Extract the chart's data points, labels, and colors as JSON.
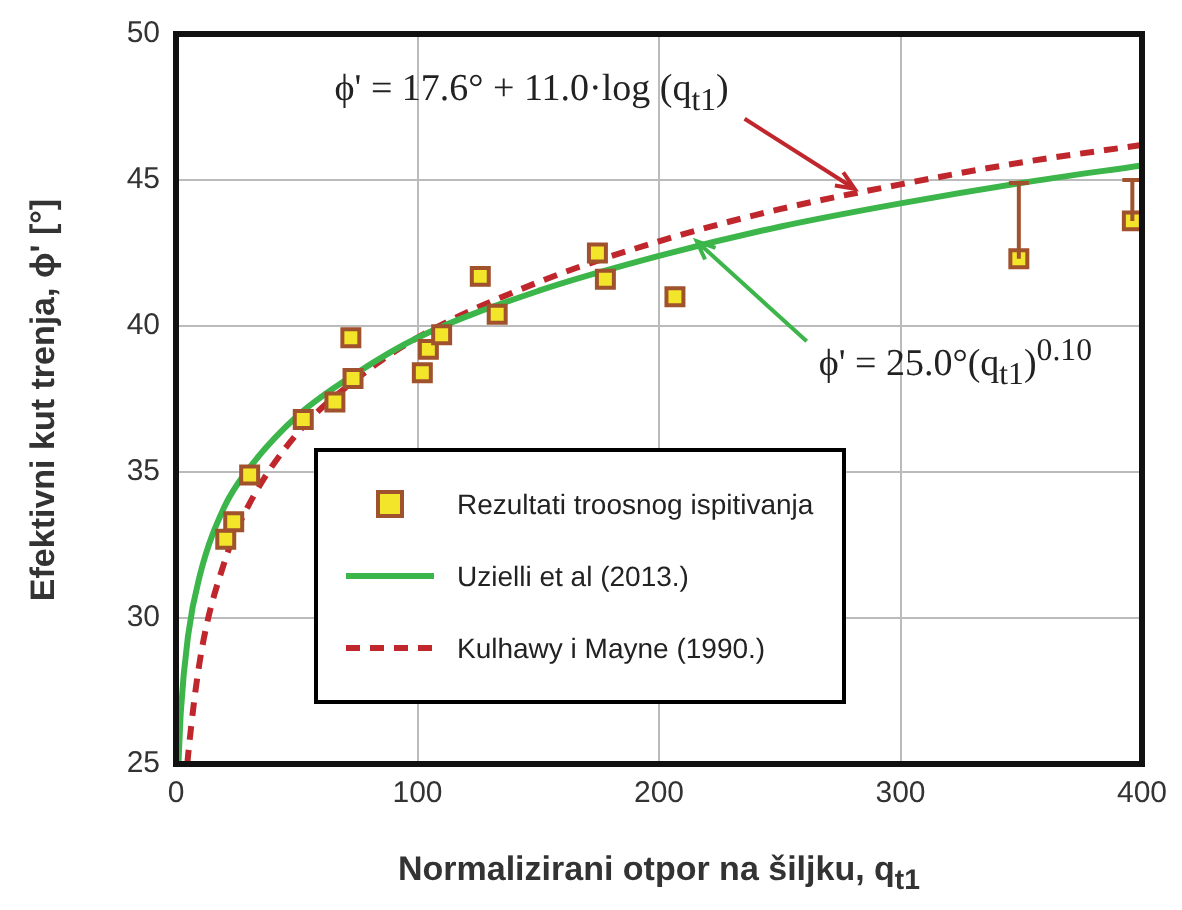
{
  "chart_data": {
    "type": "scatter",
    "xlabel": "Normalizirani otpor na šiljku, q$_{t1}$",
    "ylabel": "Efektivni kut trenja, ϕ' [°]",
    "xlim": [
      0,
      400
    ],
    "xticks": [
      0,
      100,
      200,
      300,
      400
    ],
    "ylim": [
      25,
      50
    ],
    "yticks": [
      25,
      30,
      35,
      40,
      45,
      50
    ],
    "grid": true,
    "legend": "bottom",
    "marker": "square",
    "series": [
      {
        "name": "Rezultati troosnog ispitivanja",
        "color": "#f2e52a",
        "x": [
          20.6,
          23.9,
          30.5,
          52.7,
          65.8,
          73.3,
          72.4,
          102,
          104.5,
          110,
          126,
          133,
          174.5,
          177.8,
          206.6,
          349,
          396
        ],
        "values": [
          32.7,
          33.3,
          34.9,
          36.8,
          37.4,
          38.2,
          39.6,
          38.4,
          39.2,
          39.7,
          41.7,
          40.4,
          42.5,
          41.6,
          41.0,
          42.3,
          43.6
        ],
        "errors": [
          null,
          null,
          null,
          null,
          null,
          null,
          null,
          null,
          null,
          null,
          null,
          null,
          null,
          null,
          null,
          [
            42.3,
            44.9
          ],
          [
            43.6,
            45.0
          ]
        ]
      },
      {
        "name": "Uzielli et al (2013.)",
        "type": "line",
        "color": "#3cb54a",
        "line_style": "solid",
        "marker": "none",
        "x": [
          1,
          2,
          5,
          10,
          20,
          30,
          50,
          75,
          100,
          150,
          200,
          250,
          300,
          350,
          400
        ],
        "values": [
          25,
          26.8,
          29.4,
          31.5,
          33.8,
          35.1,
          36.9,
          38.4,
          39.6,
          41.2,
          42.4,
          43.4,
          44.2,
          44.9,
          45.5
        ]
      },
      {
        "name": "Kulhawy i Mayne (1990.)",
        "type": "line",
        "color": "#c0272d",
        "line_style": "dashed",
        "marker": "none",
        "x": [
          4.7,
          5,
          10,
          20,
          30,
          50,
          75,
          100,
          150,
          200,
          250,
          300,
          350,
          400
        ],
        "values": [
          25,
          25.29,
          28.6,
          31.9,
          33.85,
          36.3,
          38.2,
          39.6,
          41.5,
          42.9,
          44.0,
          44.85,
          45.6,
          46.2
        ]
      }
    ],
    "annotations": [
      {
        "text": "ϕ' = 17.6° + 11.0·log (q$_{t1}$)",
        "x": 281,
        "y": 44.7
      },
      {
        "text": "ϕ' = 25.0°(q$_{t1}$)$^{0.10}$",
        "x": 215.6,
        "y": 42.9
      }
    ]
  }
}
